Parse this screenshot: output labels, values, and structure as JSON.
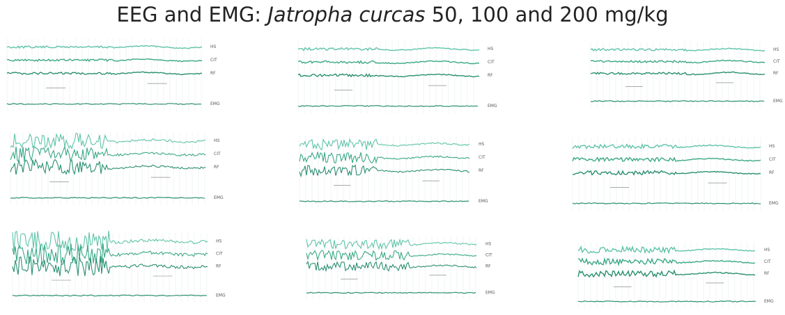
{
  "title": {
    "prefix": "EEG and EMG: ",
    "species": "Jatropha curcas",
    "suffix": " 50, 100 and 200 mg/kg"
  },
  "channel_labels": [
    "HS",
    "CIT",
    "RF",
    "EMG"
  ]
}
